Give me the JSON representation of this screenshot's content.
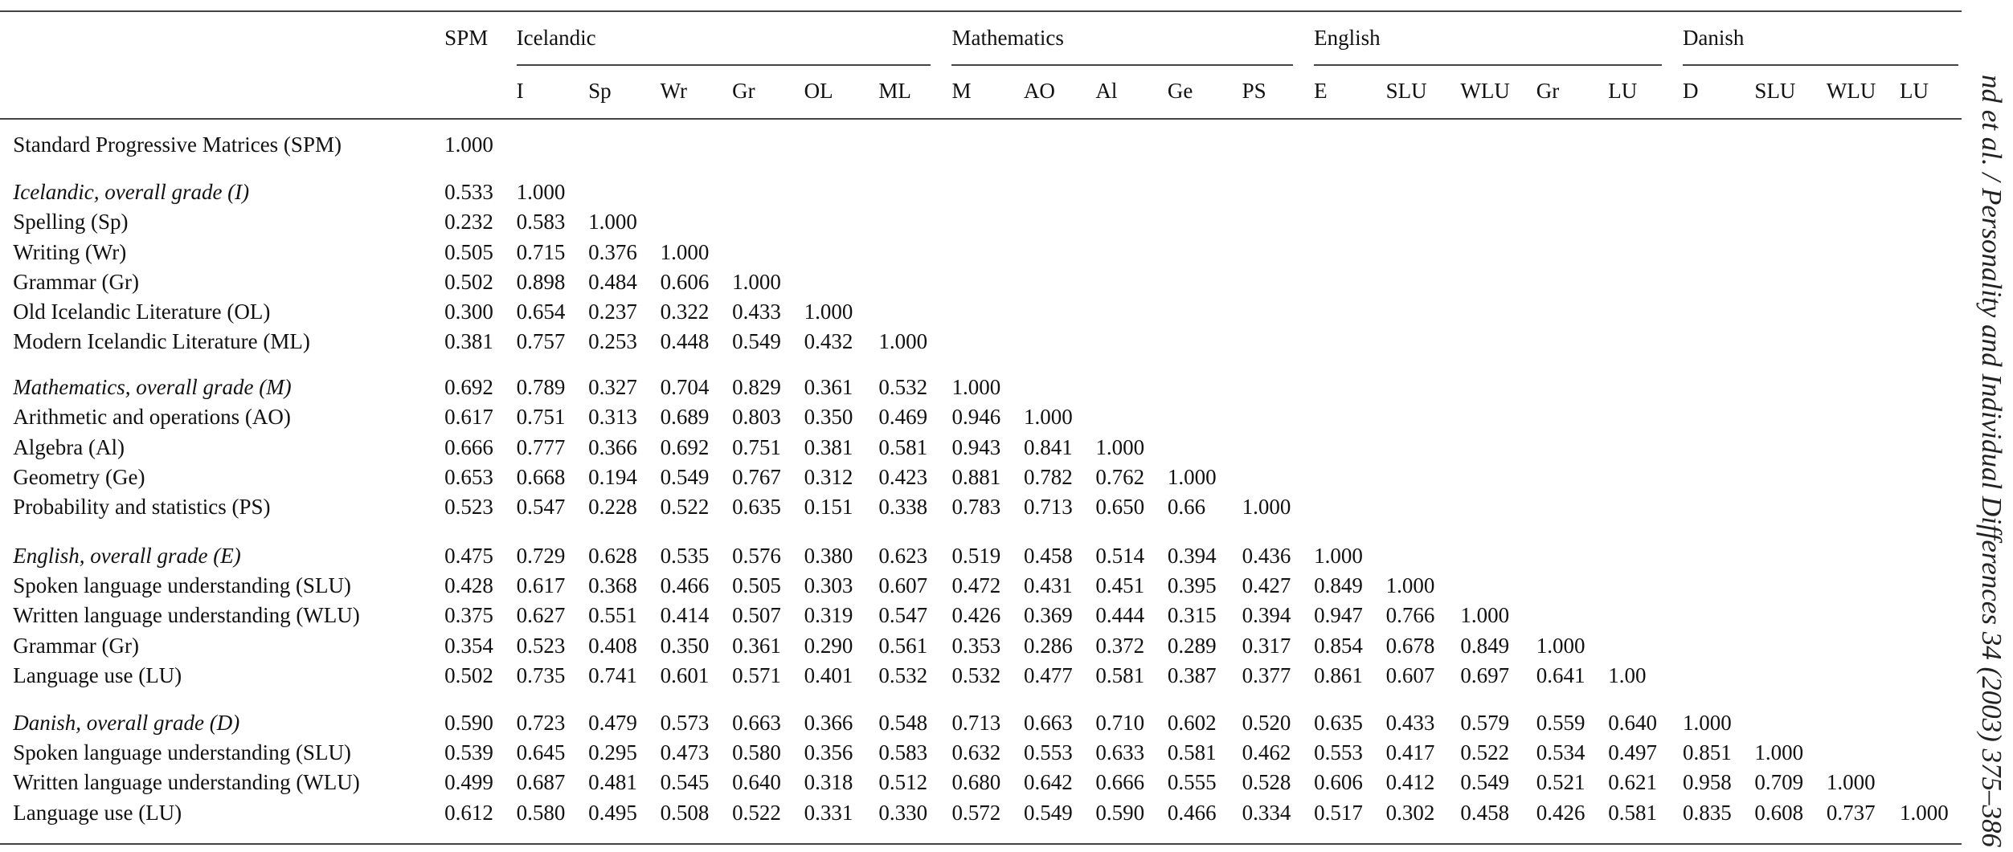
{
  "table": {
    "spm_header": "SPM",
    "groups": [
      {
        "title": "Icelandic",
        "columns": [
          "I",
          "Sp",
          "Wr",
          "Gr",
          "OL",
          "ML"
        ]
      },
      {
        "title": "Mathematics",
        "columns": [
          "M",
          "AO",
          "Al",
          "Ge",
          "PS"
        ]
      },
      {
        "title": "English",
        "columns": [
          "E",
          "SLU",
          "WLU",
          "Gr",
          "LU"
        ]
      },
      {
        "title": "Danish",
        "columns": [
          "D",
          "SLU",
          "WLU",
          "LU"
        ]
      }
    ],
    "sections": [
      {
        "rows": [
          {
            "label": "Standard Progressive Matrices (SPM)",
            "cells": [
              "1.000"
            ]
          }
        ]
      },
      {
        "rows": [
          {
            "label": "Icelandic, overall grade (I)",
            "cells": [
              "0.533",
              "1.000"
            ]
          },
          {
            "label": "Spelling (Sp)",
            "cells": [
              "0.232",
              "0.583",
              "1.000"
            ]
          },
          {
            "label": "Writing (Wr)",
            "cells": [
              "0.505",
              "0.715",
              "0.376",
              "1.000"
            ]
          },
          {
            "label": "Grammar (Gr)",
            "cells": [
              "0.502",
              "0.898",
              "0.484",
              "0.606",
              "1.000"
            ]
          },
          {
            "label": "Old Icelandic Literature (OL)",
            "cells": [
              "0.300",
              "0.654",
              "0.237",
              "0.322",
              "0.433",
              "1.000"
            ]
          },
          {
            "label": "Modern Icelandic Literature (ML)",
            "cells": [
              "0.381",
              "0.757",
              "0.253",
              "0.448",
              "0.549",
              "0.432",
              "1.000"
            ]
          }
        ]
      },
      {
        "rows": [
          {
            "label": "Mathematics, overall grade (M)",
            "cells": [
              "0.692",
              "0.789",
              "0.327",
              "0.704",
              "0.829",
              "0.361",
              "0.532",
              "1.000"
            ]
          },
          {
            "label": "Arithmetic and operations (AO)",
            "cells": [
              "0.617",
              "0.751",
              "0.313",
              "0.689",
              "0.803",
              "0.350",
              "0.469",
              "0.946",
              "1.000"
            ]
          },
          {
            "label": "Algebra (Al)",
            "cells": [
              "0.666",
              "0.777",
              "0.366",
              "0.692",
              "0.751",
              "0.381",
              "0.581",
              "0.943",
              "0.841",
              "1.000"
            ]
          },
          {
            "label": "Geometry (Ge)",
            "cells": [
              "0.653",
              "0.668",
              "0.194",
              "0.549",
              "0.767",
              "0.312",
              "0.423",
              "0.881",
              "0.782",
              "0.762",
              "1.000"
            ]
          },
          {
            "label": "Probability and statistics (PS)",
            "cells": [
              "0.523",
              "0.547",
              "0.228",
              "0.522",
              "0.635",
              "0.151",
              "0.338",
              "0.783",
              "0.713",
              "0.650",
              "0.66",
              "1.000"
            ]
          }
        ]
      },
      {
        "rows": [
          {
            "label": "English, overall grade (E)",
            "cells": [
              "0.475",
              "0.729",
              "0.628",
              "0.535",
              "0.576",
              "0.380",
              "0.623",
              "0.519",
              "0.458",
              "0.514",
              "0.394",
              "0.436",
              "1.000"
            ]
          },
          {
            "label": "Spoken language understanding (SLU)",
            "cells": [
              "0.428",
              "0.617",
              "0.368",
              "0.466",
              "0.505",
              "0.303",
              "0.607",
              "0.472",
              "0.431",
              "0.451",
              "0.395",
              "0.427",
              "0.849",
              "1.000"
            ]
          },
          {
            "label": "Written language understanding (WLU)",
            "cells": [
              "0.375",
              "0.627",
              "0.551",
              "0.414",
              "0.507",
              "0.319",
              "0.547",
              "0.426",
              "0.369",
              "0.444",
              "0.315",
              "0.394",
              "0.947",
              "0.766",
              "1.000"
            ]
          },
          {
            "label": "Grammar (Gr)",
            "cells": [
              "0.354",
              "0.523",
              "0.408",
              "0.350",
              "0.361",
              "0.290",
              "0.561",
              "0.353",
              "0.286",
              "0.372",
              "0.289",
              "0.317",
              "0.854",
              "0.678",
              "0.849",
              "1.000"
            ]
          },
          {
            "label": "Language use (LU)",
            "cells": [
              "0.502",
              "0.735",
              "0.741",
              "0.601",
              "0.571",
              "0.401",
              "0.532",
              "0.532",
              "0.477",
              "0.581",
              "0.387",
              "0.377",
              "0.861",
              "0.607",
              "0.697",
              "0.641",
              "1.00"
            ]
          }
        ]
      },
      {
        "rows": [
          {
            "label": "Danish, overall grade (D)",
            "cells": [
              "0.590",
              "0.723",
              "0.479",
              "0.573",
              "0.663",
              "0.366",
              "0.548",
              "0.713",
              "0.663",
              "0.710",
              "0.602",
              "0.520",
              "0.635",
              "0.433",
              "0.579",
              "0.559",
              "0.640",
              "1.000"
            ]
          },
          {
            "label": "Spoken language understanding (SLU)",
            "cells": [
              "0.539",
              "0.645",
              "0.295",
              "0.473",
              "0.580",
              "0.356",
              "0.583",
              "0.632",
              "0.553",
              "0.633",
              "0.581",
              "0.462",
              "0.553",
              "0.417",
              "0.522",
              "0.534",
              "0.497",
              "0.851",
              "1.000"
            ]
          },
          {
            "label": "Written language understanding (WLU)",
            "cells": [
              "0.499",
              "0.687",
              "0.481",
              "0.545",
              "0.640",
              "0.318",
              "0.512",
              "0.680",
              "0.642",
              "0.666",
              "0.555",
              "0.528",
              "0.606",
              "0.412",
              "0.549",
              "0.521",
              "0.621",
              "0.958",
              "0.709",
              "1.000"
            ]
          },
          {
            "label": "Language use (LU)",
            "cells": [
              "0.612",
              "0.580",
              "0.495",
              "0.508",
              "0.522",
              "0.331",
              "0.330",
              "0.572",
              "0.549",
              "0.590",
              "0.466",
              "0.334",
              "0.517",
              "0.302",
              "0.458",
              "0.426",
              "0.581",
              "0.835",
              "0.608",
              "0.737",
              "1.000"
            ]
          }
        ]
      }
    ]
  },
  "side_note": "nd et al. / Personality and Individual Differences 34 (2003) 375–386"
}
